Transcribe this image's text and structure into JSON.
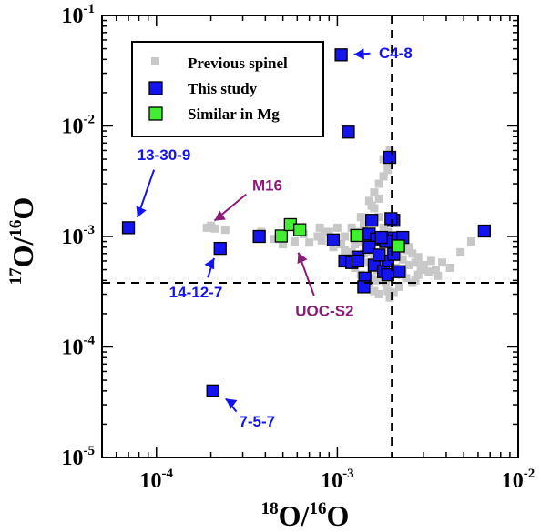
{
  "chart_data": {
    "type": "scatter",
    "title": "",
    "xlabel": {
      "iso": "18",
      "elem": "O/",
      "iso2": "16",
      "elem2": "O"
    },
    "ylabel": {
      "iso": "17",
      "elem": "O/",
      "iso2": "16",
      "elem2": "O"
    },
    "xscale": "log",
    "yscale": "log",
    "xlim": [
      5e-05,
      0.01
    ],
    "ylim": [
      1e-05,
      0.1
    ],
    "x_ticks": [
      {
        "value": 0.0001,
        "base": "10",
        "exp": "-4"
      },
      {
        "value": 0.001,
        "base": "10",
        "exp": "-3"
      },
      {
        "value": 0.01,
        "base": "10",
        "exp": "-2"
      }
    ],
    "y_ticks": [
      {
        "value": 1e-05,
        "base": "10",
        "exp": "-5"
      },
      {
        "value": 0.0001,
        "base": "10",
        "exp": "-4"
      },
      {
        "value": 0.001,
        "base": "10",
        "exp": "-3"
      },
      {
        "value": 0.01,
        "base": "10",
        "exp": "-2"
      },
      {
        "value": 0.1,
        "base": "10",
        "exp": "-1"
      }
    ],
    "grid": false,
    "reference_lines": {
      "x": 0.002,
      "y": 0.00038
    },
    "legend": {
      "placement": "top-left"
    },
    "series": [
      {
        "name": "Previous spinel",
        "marker": "small-square",
        "color": "#c8c8c8",
        "edge": "none",
        "points": [
          [
            0.00019,
            0.0012
          ],
          [
            0.0002,
            0.00125
          ],
          [
            0.00021,
            0.00118
          ],
          [
            0.00024,
            0.00115
          ],
          [
            0.00038,
            0.0011
          ],
          [
            0.00045,
            0.00095
          ],
          [
            0.0005,
            0.00085
          ],
          [
            0.00058,
            0.0009
          ],
          [
            0.00065,
            0.00105
          ],
          [
            0.0007,
            0.00088
          ],
          [
            0.00078,
            0.001
          ],
          [
            0.00082,
            0.00092
          ],
          [
            0.00085,
            0.0011
          ],
          [
            0.00095,
            0.0008
          ],
          [
            0.00105,
            0.00085
          ],
          [
            0.0011,
            0.00075
          ],
          [
            0.00115,
            0.0006
          ],
          [
            0.0012,
            0.00072
          ],
          [
            0.00125,
            0.00052
          ],
          [
            0.0013,
            0.00065
          ],
          [
            0.00135,
            0.00045
          ],
          [
            0.0014,
            0.0007
          ],
          [
            0.00145,
            0.00035
          ],
          [
            0.0015,
            0.00058
          ],
          [
            0.00155,
            0.00042
          ],
          [
            0.0016,
            0.00065
          ],
          [
            0.00165,
            0.0005
          ],
          [
            0.0017,
            0.0003
          ],
          [
            0.00175,
            0.00055
          ],
          [
            0.0018,
            0.00075
          ],
          [
            0.00185,
            0.00038
          ],
          [
            0.0019,
            0.0006
          ],
          [
            0.00195,
            0.00028
          ],
          [
            0.002,
            0.00048
          ],
          [
            0.0021,
            0.00052
          ],
          [
            0.0022,
            0.00035
          ],
          [
            0.0023,
            0.00062
          ],
          [
            0.0024,
            0.00042
          ],
          [
            0.0025,
            0.00055
          ],
          [
            0.0026,
            0.00038
          ],
          [
            0.0027,
            0.00058
          ],
          [
            0.0028,
            0.00045
          ],
          [
            0.0029,
            0.0005
          ],
          [
            0.003,
            0.00055
          ],
          [
            0.0032,
            0.00048
          ],
          [
            0.0035,
            0.0005
          ],
          [
            0.0038,
            0.00058
          ],
          [
            0.0042,
            0.00052
          ],
          [
            0.0048,
            0.00072
          ],
          [
            0.0055,
            0.0009
          ],
          [
            0.0028,
            0.00065
          ],
          [
            0.0026,
            0.0007
          ],
          [
            0.0025,
            0.0008
          ],
          [
            0.0023,
            0.00085
          ],
          [
            0.0021,
            0.0009
          ],
          [
            0.0019,
            0.0011
          ],
          [
            0.0018,
            0.0012
          ],
          [
            0.0017,
            0.0015
          ],
          [
            0.0016,
            0.0018
          ],
          [
            0.0015,
            0.0021
          ],
          [
            0.0016,
            0.0025
          ],
          [
            0.0017,
            0.003
          ],
          [
            0.0018,
            0.0035
          ],
          [
            0.0019,
            0.004
          ],
          [
            0.0019,
            0.0045
          ],
          [
            0.0018,
            0.005
          ],
          [
            0.0019,
            0.0055
          ],
          [
            0.00195,
            0.006
          ],
          [
            0.0017,
            0.0022
          ],
          [
            0.00155,
            0.0019
          ],
          [
            0.0012,
            0.0012
          ],
          [
            0.00125,
            0.00085
          ],
          [
            0.0013,
            0.0011
          ],
          [
            0.0014,
            0.0013
          ],
          [
            0.00145,
            0.001
          ],
          [
            0.00135,
            0.0015
          ],
          [
            0.0011,
            0.001
          ],
          [
            0.001,
            0.0012
          ],
          [
            0.0009,
            0.0011
          ],
          [
            0.0008,
            0.0012
          ],
          [
            0.0021,
            0.00072
          ],
          [
            0.00205,
            0.00031
          ],
          [
            0.0016,
            0.00032
          ],
          [
            0.0015,
            0.00035
          ],
          [
            0.0014,
            0.00038
          ],
          [
            0.00215,
            0.00065
          ],
          [
            0.0022,
            0.0008
          ],
          [
            0.0024,
            0.00075
          ],
          [
            0.0013,
            0.0009
          ],
          [
            0.0012,
            0.0006
          ],
          [
            0.00175,
            0.0009
          ],
          [
            0.00185,
            0.00085
          ],
          [
            0.00225,
            0.00045
          ],
          [
            0.0033,
            0.0006
          ],
          [
            0.0036,
            0.00044
          ],
          [
            0.0019,
            0.00032
          ],
          [
            0.00165,
            0.0004
          ],
          [
            0.00155,
            0.00072
          ],
          [
            0.0023,
            0.0005
          ],
          [
            0.0027,
            0.0004
          ]
        ]
      },
      {
        "name": "This study",
        "marker": "square",
        "color": "#1414f0",
        "edge": "#000000",
        "points": [
          [
            7e-05,
            0.0012
          ],
          [
            0.000225,
            0.00078
          ],
          [
            0.00037,
            0.001
          ],
          [
            0.00095,
            0.00093
          ],
          [
            0.00105,
            0.044
          ],
          [
            0.00115,
            0.0088
          ],
          [
            0.00195,
            0.0052
          ],
          [
            0.00205,
            0.00097
          ],
          [
            0.00205,
            0.0014
          ],
          [
            0.00198,
            0.00145
          ],
          [
            0.00155,
            0.0014
          ],
          [
            0.0015,
            0.00105
          ],
          [
            0.00165,
            0.00095
          ],
          [
            0.00185,
            0.0009
          ],
          [
            0.00175,
            0.00098
          ],
          [
            0.0023,
            0.00098
          ],
          [
            0.0011,
            0.0006
          ],
          [
            0.0013,
            0.00065
          ],
          [
            0.0012,
            0.00058
          ],
          [
            0.00142,
            0.00042
          ],
          [
            0.0014,
            0.00035
          ],
          [
            0.0016,
            0.00055
          ],
          [
            0.0018,
            0.00048
          ],
          [
            0.0019,
            0.00045
          ],
          [
            0.0019,
            0.0006
          ],
          [
            0.0022,
            0.00048
          ],
          [
            0.0015,
            0.0008
          ],
          [
            0.0017,
            0.00068
          ],
          [
            0.0013,
            0.0006
          ],
          [
            0.00205,
            0.00069
          ],
          [
            0.0065,
            0.00112
          ],
          [
            0.000205,
            4e-05
          ]
        ]
      },
      {
        "name": "Similar in Mg",
        "marker": "square",
        "color": "#40f030",
        "edge": "#000000",
        "points": [
          [
            0.00049,
            0.00101
          ],
          [
            0.00055,
            0.00128
          ],
          [
            0.00062,
            0.00115
          ],
          [
            0.00128,
            0.00102
          ],
          [
            0.00218,
            0.00082
          ]
        ]
      }
    ],
    "annotations": [
      {
        "text": "C4-8",
        "color": "#1414f0",
        "x": 0.0021,
        "y": 0.041,
        "point_x": 0.0011,
        "point_y": 0.044
      },
      {
        "text": "13-30-9",
        "color": "#1414f0",
        "x": 0.00011,
        "y": 0.0049,
        "point_x": 7.5e-05,
        "point_y": 0.00125
      },
      {
        "text": "M16",
        "color": "#8b1a7a",
        "x": 0.00041,
        "y": 0.0026,
        "point_x": 0.00019,
        "point_y": 0.00125
      },
      {
        "text": "14-12-7",
        "color": "#1414f0",
        "x": 0.000165,
        "y": 0.00028,
        "point_x": 0.00022,
        "point_y": 0.00075
      },
      {
        "text": "UOC-S2",
        "color": "#8b1a7a",
        "x": 0.00085,
        "y": 0.00019,
        "point_x": 0.00058,
        "point_y": 0.00085
      },
      {
        "text": "7-5-7",
        "color": "#1414f0",
        "x": 0.00036,
        "y": 1.9e-05,
        "point_x": 0.00022,
        "point_y": 3.8e-05
      }
    ]
  }
}
